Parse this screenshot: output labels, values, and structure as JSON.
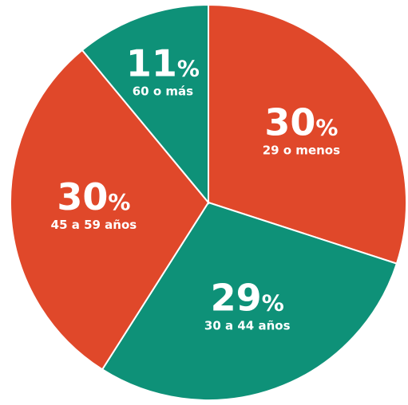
{
  "chart_data": {
    "type": "pie",
    "categories": [
      "29 o menos",
      "30 a 44 años",
      "45 a 59 años",
      "60 o más"
    ],
    "values": [
      30,
      29,
      30,
      11
    ],
    "value_labels": [
      "30%",
      "29%",
      "30%",
      "11%"
    ],
    "colors": [
      "#e0482a",
      "#0e9178",
      "#e0482a",
      "#0e9178"
    ]
  }
}
